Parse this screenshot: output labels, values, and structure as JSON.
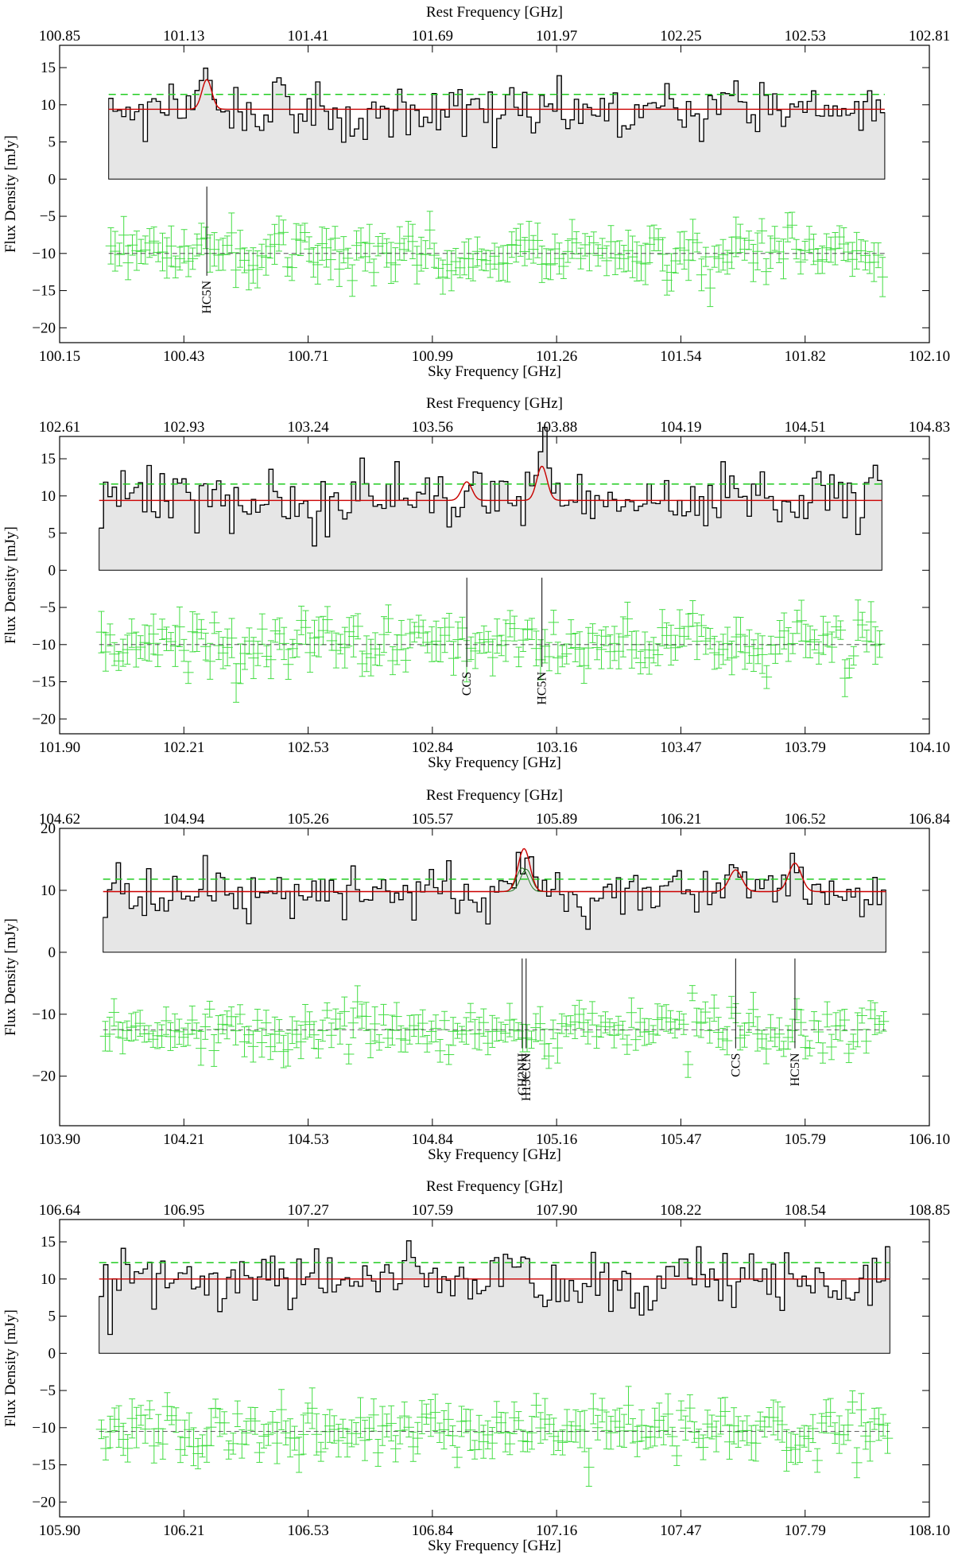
{
  "figure": {
    "top_axis_title": "Rest Frequency [GHz]",
    "bottom_axis_title": "Sky Frequency [GHz]",
    "y_axis_title": "Flux Density [mJy]"
  },
  "colors": {
    "spectrum": "#000000",
    "fill": "#e6e6e6",
    "model": "#cc0000",
    "threshold": "#22cc22",
    "residual": "#44dd44",
    "component": "#227722"
  },
  "chart_data": [
    {
      "type": "line",
      "x_unit": "GHz (sky)",
      "xlim_sky": [
        100.15,
        102.1
      ],
      "xlim_rest": [
        100.85,
        102.81
      ],
      "ylim": [
        -22,
        18
      ],
      "top_ticks": [
        "100.85",
        "101.13",
        "101.41",
        "101.69",
        "101.97",
        "102.25",
        "102.53",
        "102.81"
      ],
      "bottom_ticks": [
        "100.15",
        "100.43",
        "100.71",
        "100.99",
        "101.26",
        "101.54",
        "101.82",
        "102.10"
      ],
      "y_ticks": [
        "15",
        "10",
        "5",
        "0",
        "−5",
        "−10",
        "−15",
        "−20"
      ],
      "y_tick_values": [
        15,
        10,
        5,
        0,
        -5,
        -10,
        -15,
        -20
      ],
      "spectrum_range": [
        100.26,
        102.0
      ],
      "continuum": 9.4,
      "threshold": 11.4,
      "residual_offset": -10,
      "noise_std": 1.9,
      "residual_noise": 1.6,
      "seed": 11,
      "lines": [
        {
          "name": "HC5N",
          "center": 100.48,
          "peak": 4.0,
          "sigma": 0.011
        }
      ]
    },
    {
      "type": "line",
      "x_unit": "GHz (sky)",
      "xlim_sky": [
        101.9,
        104.1
      ],
      "xlim_rest": [
        102.61,
        104.83
      ],
      "ylim": [
        -22,
        18
      ],
      "top_ticks": [
        "102.61",
        "102.93",
        "103.24",
        "103.56",
        "103.88",
        "104.19",
        "104.51",
        "104.83"
      ],
      "bottom_ticks": [
        "101.90",
        "102.21",
        "102.53",
        "102.84",
        "103.16",
        "103.47",
        "103.79",
        "104.10"
      ],
      "y_ticks": [
        "15",
        "10",
        "5",
        "0",
        "−5",
        "−10",
        "−15",
        "−20"
      ],
      "y_tick_values": [
        15,
        10,
        5,
        0,
        -5,
        -10,
        -15,
        -20
      ],
      "spectrum_range": [
        102.0,
        103.98
      ],
      "continuum": 9.4,
      "threshold": 11.6,
      "residual_offset": -10,
      "noise_std": 2.2,
      "residual_noise": 1.7,
      "seed": 23,
      "lines": [
        {
          "name": "CCS",
          "center": 102.93,
          "peak": 2.5,
          "sigma": 0.013
        },
        {
          "name": "HC5N",
          "center": 103.12,
          "peak": 4.6,
          "sigma": 0.013
        }
      ]
    },
    {
      "type": "line",
      "x_unit": "GHz (sky)",
      "xlim_sky": [
        103.9,
        106.1
      ],
      "xlim_rest": [
        104.62,
        106.84
      ],
      "ylim": [
        -28,
        20
      ],
      "top_ticks": [
        "104.62",
        "104.94",
        "105.26",
        "105.57",
        "105.89",
        "106.21",
        "106.52",
        "106.84"
      ],
      "bottom_ticks": [
        "103.90",
        "104.21",
        "104.53",
        "104.84",
        "105.16",
        "105.47",
        "105.79",
        "106.10"
      ],
      "y_ticks": [
        "20",
        "10",
        "0",
        "−10",
        "−20"
      ],
      "y_tick_values": [
        20,
        10,
        0,
        -10,
        -20
      ],
      "spectrum_range": [
        104.01,
        105.99
      ],
      "continuum": 9.8,
      "threshold": 11.8,
      "residual_offset": -12.5,
      "noise_std": 2.0,
      "residual_noise": 1.8,
      "seed": 37,
      "lines": [
        {
          "name": "CH2NH",
          "center": 105.07,
          "peak": 3.8,
          "sigma": 0.014
        },
        {
          "name": "H13CCN",
          "center": 105.08,
          "peak": 3.6,
          "sigma": 0.014
        },
        {
          "name": "CCS",
          "center": 105.61,
          "peak": 3.5,
          "sigma": 0.016
        },
        {
          "name": "HC5N",
          "center": 105.76,
          "peak": 4.6,
          "sigma": 0.016
        }
      ]
    },
    {
      "type": "line",
      "x_unit": "GHz (sky)",
      "xlim_sky": [
        105.9,
        108.1
      ],
      "xlim_rest": [
        106.64,
        108.85
      ],
      "ylim": [
        -22,
        18
      ],
      "top_ticks": [
        "106.64",
        "106.95",
        "107.27",
        "107.59",
        "107.90",
        "108.22",
        "108.54",
        "108.85"
      ],
      "bottom_ticks": [
        "105.90",
        "106.21",
        "106.53",
        "106.84",
        "107.16",
        "107.47",
        "107.79",
        "108.10"
      ],
      "y_ticks": [
        "15",
        "10",
        "5",
        "0",
        "−5",
        "−10",
        "−15",
        "−20"
      ],
      "y_tick_values": [
        15,
        10,
        5,
        0,
        -5,
        -10,
        -15,
        -20
      ],
      "spectrum_range": [
        106.0,
        108.0
      ],
      "continuum": 10.0,
      "threshold": 12.2,
      "residual_offset": -10.5,
      "noise_std": 2.1,
      "residual_noise": 1.7,
      "seed": 53,
      "lines": []
    }
  ]
}
